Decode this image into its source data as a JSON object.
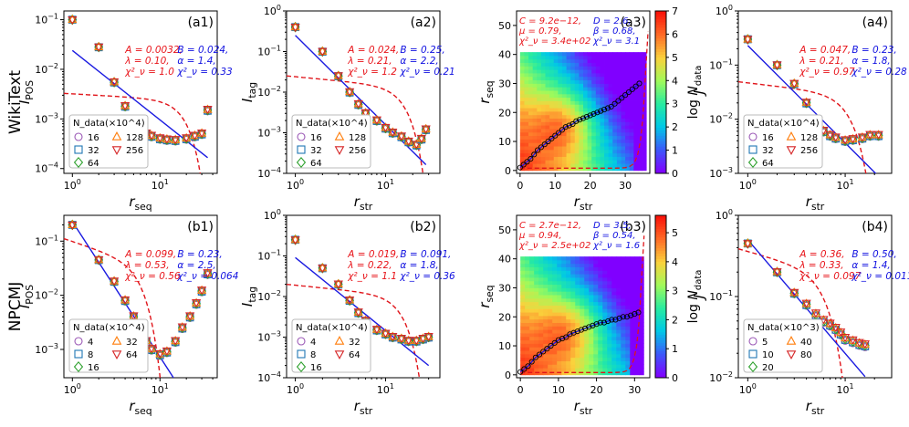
{
  "row_labels": [
    "WikiText",
    "NPCMJ"
  ],
  "colors": {
    "red": "#e8141a",
    "blue": "#1010e0",
    "fit_blue": "#1a1ae0",
    "fit_red": "#e0141a",
    "markers": [
      "#9b59b6",
      "#1f77b4",
      "#2ca02c",
      "#ff7f0e",
      "#d62728"
    ]
  },
  "chart_data": [
    {
      "id": "a1",
      "type": "scatter",
      "panel_label": "(a1)",
      "xlabel": "r_seq",
      "ylabel": "I_POS",
      "xscale": "log",
      "yscale": "log",
      "xlim": [
        0.8,
        45
      ],
      "ylim": [
        8e-05,
        0.15
      ],
      "xticks": [
        "10^0",
        "10^1"
      ],
      "yticks": [
        "10^-4",
        "10^-3",
        "10^-2",
        "10^-1"
      ],
      "legend_title": "N_data(×10^4)",
      "legend_entries": [
        "16",
        "128",
        "32",
        "256",
        "64"
      ],
      "fit_red": {
        "A": "A = 0.0032,",
        "lambda": "λ = 0.10,",
        "chi": "χ²_ν = 1.0"
      },
      "fit_blue": {
        "B": "B = 0.024,",
        "alpha": "α = 1.4,",
        "chi": "χ²_ν = 0.33"
      },
      "series": [
        {
          "name": "data",
          "x": [
            1,
            2,
            3,
            4,
            5,
            6,
            7,
            8,
            10,
            12,
            15,
            20,
            25,
            30,
            35
          ],
          "y": [
            0.1,
            0.028,
            0.0055,
            0.0018,
            0.0009,
            0.0006,
            0.0005,
            0.00045,
            0.0004,
            0.00038,
            0.00037,
            0.0004,
            0.00045,
            0.0005,
            0.0015
          ]
        }
      ],
      "blue_fit": {
        "x0": 1,
        "y0": 0.024,
        "alpha": 1.4
      },
      "red_fit": {
        "A": 0.0032,
        "lambda": 0.1,
        "xmax": 35
      }
    },
    {
      "id": "a2",
      "type": "scatter",
      "panel_label": "(a2)",
      "xlabel": "r_str",
      "ylabel": "I_tag",
      "xscale": "log",
      "yscale": "log",
      "xlim": [
        0.8,
        40
      ],
      "ylim": [
        0.0001,
        1
      ],
      "xticks": [
        "10^0",
        "10^1"
      ],
      "yticks": [
        "10^-4",
        "10^-3",
        "10^-2",
        "10^-1",
        "10^0"
      ],
      "legend_title": "N_data(×10^4)",
      "legend_entries": [
        "16",
        "128",
        "32",
        "256",
        "64"
      ],
      "fit_red": {
        "A": "A = 0.024,",
        "lambda": "λ = 0.21,",
        "chi": "χ²_ν = 1.2"
      },
      "fit_blue": {
        "B": "B = 0.25,",
        "alpha": "α = 2.2,",
        "chi": "χ²_ν = 0.21"
      },
      "series": [
        {
          "name": "data",
          "x": [
            1,
            2,
            3,
            4,
            5,
            6,
            8,
            10,
            12,
            15,
            18,
            22,
            25,
            28
          ],
          "y": [
            0.4,
            0.1,
            0.025,
            0.01,
            0.005,
            0.003,
            0.002,
            0.0013,
            0.001,
            0.0008,
            0.0006,
            0.0005,
            0.0007,
            0.0012
          ]
        }
      ],
      "blue_fit": {
        "x0": 1,
        "y0": 0.25,
        "alpha": 2.2
      },
      "red_fit": {
        "A": 0.024,
        "lambda": 0.21,
        "xmax": 28
      }
    },
    {
      "id": "a3",
      "type": "heatmap",
      "panel_label": "(a3)",
      "xlabel": "r_str",
      "ylabel": "r_seq",
      "xlim": [
        -1,
        37
      ],
      "ylim": [
        -1,
        55
      ],
      "xticks": [
        "0",
        "10",
        "20",
        "30"
      ],
      "yticks": [
        "0",
        "10",
        "20",
        "30",
        "40",
        "50"
      ],
      "colorbar_label": "log N_data",
      "colorbar_max": 7,
      "colorbar_ticks": [
        "0",
        "1",
        "2",
        "3",
        "4",
        "5",
        "6",
        "7"
      ],
      "fit_red": {
        "C": "C = 9.2e−12,",
        "mu": "μ = 0.79,",
        "chi": "χ²_ν = 3.4e+02"
      },
      "fit_blue": {
        "D": "D = 2.6,",
        "beta": "β = 0.68,",
        "chi": "χ²_ν = 3.1"
      },
      "circles": {
        "x": [
          0,
          1,
          2,
          3,
          4,
          5,
          6,
          7,
          8,
          9,
          10,
          11,
          12,
          13,
          14,
          15,
          16,
          17,
          18,
          19,
          20,
          21,
          22,
          23,
          24,
          25,
          26,
          27,
          28,
          29,
          30,
          31,
          32,
          33,
          34
        ],
        "y": [
          1,
          2,
          3,
          4,
          5.5,
          7,
          8,
          9,
          10,
          11,
          12,
          13,
          14,
          15,
          15.5,
          16,
          17,
          17.5,
          18,
          18.5,
          19,
          19.5,
          20,
          20.5,
          21,
          21.5,
          22,
          23,
          24,
          25,
          26,
          27,
          28,
          29,
          30
        ]
      },
      "dmax": 36,
      "heat_max": 40
    },
    {
      "id": "a4",
      "type": "scatter",
      "panel_label": "(a4)",
      "xlabel": "r_str",
      "ylabel": "J",
      "xscale": "log",
      "yscale": "log",
      "xlim": [
        0.8,
        30
      ],
      "ylim": [
        0.001,
        1
      ],
      "xticks": [
        "10^0",
        "10^1"
      ],
      "yticks": [
        "10^-3",
        "10^-2",
        "10^-1",
        "10^0"
      ],
      "legend_title": "N_data(×10^4)",
      "legend_entries": [
        "16",
        "128",
        "32",
        "256",
        "64"
      ],
      "fit_red": {
        "A": "A = 0.047,",
        "lambda": "λ = 0.21,",
        "chi": "χ²_ν = 0.97"
      },
      "fit_blue": {
        "B": "B = 0.23,",
        "alpha": "α = 1.8,",
        "chi": "χ²_ν = 0.28"
      },
      "series": [
        {
          "name": "data",
          "x": [
            1,
            2,
            3,
            4,
            5,
            6,
            7,
            8,
            10,
            12,
            15,
            18,
            22
          ],
          "y": [
            0.3,
            0.1,
            0.045,
            0.02,
            0.009,
            0.006,
            0.005,
            0.0045,
            0.004,
            0.0042,
            0.0045,
            0.005,
            0.005
          ]
        }
      ],
      "blue_fit": {
        "x0": 1,
        "y0": 0.23,
        "alpha": 1.8
      },
      "red_fit": {
        "A": 0.047,
        "lambda": 0.21,
        "xmax": 20
      }
    },
    {
      "id": "b1",
      "type": "scatter",
      "panel_label": "(b1)",
      "xlabel": "r_seq",
      "ylabel": "I_POS",
      "xscale": "log",
      "yscale": "log",
      "xlim": [
        0.8,
        45
      ],
      "ylim": [
        0.0003,
        0.3
      ],
      "xticks": [
        "10^0",
        "10^1"
      ],
      "yticks": [
        "10^-3",
        "10^-2",
        "10^-1"
      ],
      "legend_title": "N_data(×10^4)",
      "legend_entries": [
        "4",
        "32",
        "8",
        "64",
        "16"
      ],
      "fit_red": {
        "A": "A = 0.099,",
        "lambda": "λ = 0.53,",
        "chi": "χ²_ν = 0.56"
      },
      "fit_blue": {
        "B": "B = 0.23,",
        "alpha": "α = 2.5,",
        "chi": "χ²_ν = 0.064"
      },
      "series": [
        {
          "name": "data",
          "x": [
            1,
            2,
            3,
            4,
            5,
            6,
            7,
            8,
            10,
            12,
            15,
            18,
            22,
            26,
            30,
            35
          ],
          "y": [
            0.2,
            0.045,
            0.018,
            0.008,
            0.004,
            0.0022,
            0.0014,
            0.001,
            0.0008,
            0.0009,
            0.0014,
            0.0025,
            0.004,
            0.007,
            0.012,
            0.025
          ]
        }
      ],
      "blue_fit": {
        "x0": 1,
        "y0": 0.23,
        "alpha": 2.5
      },
      "red_fit": {
        "A": 0.099,
        "lambda": 0.53,
        "xmax": 11
      }
    },
    {
      "id": "b2",
      "type": "scatter",
      "panel_label": "(b2)",
      "xlabel": "r_str",
      "ylabel": "I_tag",
      "xscale": "log",
      "yscale": "log",
      "xlim": [
        0.8,
        40
      ],
      "ylim": [
        0.0001,
        1
      ],
      "xticks": [
        "10^0",
        "10^1"
      ],
      "yticks": [
        "10^-4",
        "10^-3",
        "10^-2",
        "10^-1",
        "10^0"
      ],
      "legend_title": "N_data(×10^4)",
      "legend_entries": [
        "4",
        "32",
        "8",
        "64",
        "16"
      ],
      "fit_red": {
        "A": "A = 0.019,",
        "lambda": "λ = 0.22,",
        "chi": "χ²_ν = 1.1"
      },
      "fit_blue": {
        "B": "B = 0.091,",
        "alpha": "α = 1.8,",
        "chi": "χ²_ν = 0.36"
      },
      "series": [
        {
          "name": "data",
          "x": [
            1,
            2,
            3,
            4,
            5,
            6,
            8,
            10,
            12,
            15,
            18,
            22,
            26,
            30
          ],
          "y": [
            0.25,
            0.05,
            0.02,
            0.008,
            0.004,
            0.0025,
            0.0015,
            0.0012,
            0.001,
            0.0009,
            0.0008,
            0.0008,
            0.0009,
            0.001
          ]
        }
      ],
      "blue_fit": {
        "x0": 1,
        "y0": 0.091,
        "alpha": 1.8
      },
      "red_fit": {
        "A": 0.019,
        "lambda": 0.22,
        "xmax": 26
      }
    },
    {
      "id": "b3",
      "type": "heatmap",
      "panel_label": "(b3)",
      "xlabel": "r_str",
      "ylabel": "r_seq",
      "xlim": [
        -1,
        34
      ],
      "ylim": [
        -1,
        55
      ],
      "xticks": [
        "0",
        "10",
        "20",
        "30"
      ],
      "yticks": [
        "0",
        "10",
        "20",
        "30",
        "40",
        "50"
      ],
      "colorbar_label": "log N_data",
      "colorbar_max": 5.6,
      "colorbar_ticks": [
        "0",
        "1",
        "2",
        "3",
        "4",
        "5"
      ],
      "fit_red": {
        "C": "C = 2.7e−12,",
        "mu": "μ = 0.94,",
        "chi": "χ²_ν = 2.5e+02"
      },
      "fit_blue": {
        "D": "D = 3.5,",
        "beta": "β = 0.54,",
        "chi": "χ²_ν = 1.6"
      },
      "circles": {
        "x": [
          0,
          1,
          2,
          3,
          4,
          5,
          6,
          7,
          8,
          9,
          10,
          11,
          12,
          13,
          14,
          15,
          16,
          17,
          18,
          19,
          20,
          21,
          22,
          23,
          24,
          25,
          26,
          27,
          28,
          29,
          30,
          31
        ],
        "y": [
          1,
          2,
          3,
          4.5,
          6,
          7,
          8,
          9,
          10,
          11,
          12,
          12.5,
          13,
          14,
          14.5,
          15,
          15.5,
          16,
          16.5,
          17,
          17.5,
          18,
          18,
          18.5,
          19,
          19,
          19.5,
          20,
          20,
          20.5,
          21,
          21.5
        ]
      },
      "dmax": 32,
      "heat_max": 40
    },
    {
      "id": "b4",
      "type": "scatter",
      "panel_label": "(b4)",
      "xlabel": "r_str",
      "ylabel": "J",
      "xscale": "log",
      "yscale": "log",
      "xlim": [
        0.8,
        30
      ],
      "ylim": [
        0.01,
        1
      ],
      "xticks": [
        "10^0",
        "10^1"
      ],
      "yticks": [
        "10^-2",
        "10^-1",
        "10^0"
      ],
      "legend_title": "N_data(×10^3)",
      "legend_entries": [
        "5",
        "40",
        "10",
        "80",
        "20"
      ],
      "fit_red": {
        "A": "A = 0.36,",
        "lambda": "λ = 0.33,",
        "chi": "χ²_ν = 0.097"
      },
      "fit_blue": {
        "B": "B = 0.50,",
        "alpha": "α = 1.4,",
        "chi": "χ²_ν = 0.011"
      },
      "series": [
        {
          "name": "data",
          "x": [
            1,
            2,
            3,
            4,
            5,
            6,
            7,
            8,
            9,
            10,
            12,
            14,
            16
          ],
          "y": [
            0.45,
            0.2,
            0.11,
            0.08,
            0.06,
            0.05,
            0.045,
            0.04,
            0.035,
            0.03,
            0.028,
            0.026,
            0.025
          ]
        }
      ],
      "blue_fit": {
        "x0": 1,
        "y0": 0.5,
        "alpha": 1.4
      },
      "red_fit": {
        "A": 0.36,
        "lambda": 0.33,
        "xmax": 12
      }
    }
  ]
}
